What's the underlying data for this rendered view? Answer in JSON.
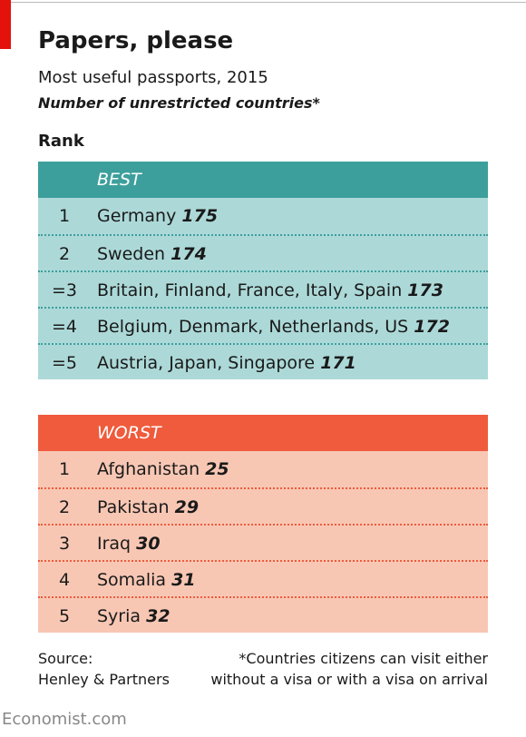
{
  "header": {
    "title": "Papers, please",
    "subtitle": "Most useful passports, 2015",
    "note": "Number of unrestricted countries*",
    "rank_label": "Rank"
  },
  "tables": {
    "best": {
      "heading": "BEST",
      "rows": [
        {
          "rank": "1",
          "countries": "Germany",
          "value": 175
        },
        {
          "rank": "2",
          "countries": "Sweden",
          "value": 174
        },
        {
          "rank": "=3",
          "countries": "Britain, Finland, France, Italy, Spain",
          "value": 173
        },
        {
          "rank": "=4",
          "countries": "Belgium, Denmark, Netherlands, US",
          "value": 172
        },
        {
          "rank": "=5",
          "countries": "Austria, Japan, Singapore",
          "value": 171
        }
      ]
    },
    "worst": {
      "heading": "WORST",
      "rows": [
        {
          "rank": "1",
          "countries": "Afghanistan",
          "value": 25
        },
        {
          "rank": "2",
          "countries": "Pakistan",
          "value": 29
        },
        {
          "rank": "3",
          "countries": "Iraq",
          "value": 30
        },
        {
          "rank": "4",
          "countries": "Somalia",
          "value": 31
        },
        {
          "rank": "5",
          "countries": "Syria",
          "value": 32
        }
      ]
    }
  },
  "footer": {
    "source": [
      "Source:",
      "Henley & Partners"
    ],
    "footnote": [
      "*Countries citizens can visit either",
      "without a visa or with a visa on arrival"
    ],
    "brand": "Economist.com"
  }
}
